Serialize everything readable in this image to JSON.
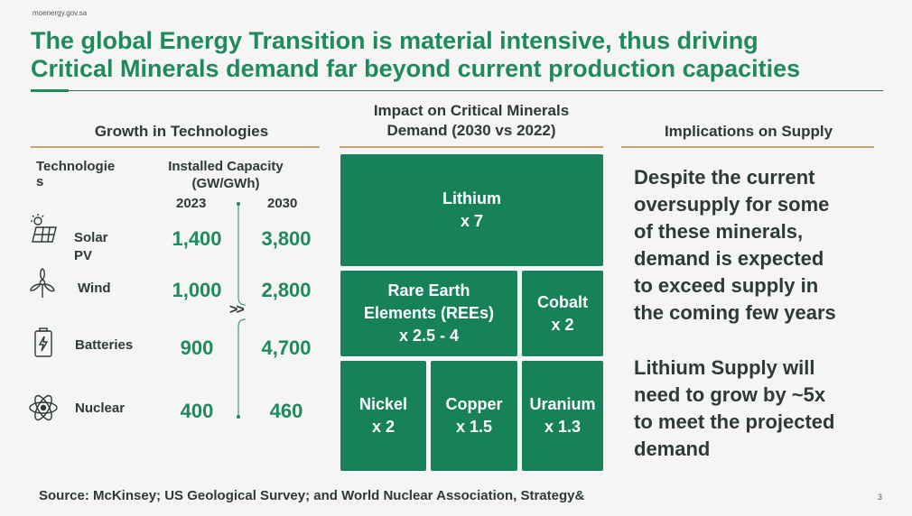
{
  "site": "moenergy.gov.sa",
  "title_line1": "The global Energy Transition is material intensive, thus driving",
  "title_line2": "Critical Minerals demand far beyond current production capacities",
  "growth": {
    "heading": "Growth in Technologies",
    "col_tech_line1": "Technologie",
    "col_tech_line2": "s",
    "col_capacity_line1": "Installed Capacity",
    "col_capacity_line2": "(GW/GWh)",
    "year_a": "2023",
    "year_b": "2030",
    "arrow": ">>",
    "rows": [
      {
        "name_line1": "Solar",
        "name_line2": "PV",
        "icon": "solar-panel-icon",
        "v2023": "1,400",
        "v2030": "3,800"
      },
      {
        "name_line1": "Wind",
        "name_line2": "",
        "icon": "wind-turbine-icon",
        "v2023": "1,000",
        "v2030": "2,800"
      },
      {
        "name_line1": "Batteries",
        "name_line2": "",
        "icon": "battery-icon",
        "v2023": "900",
        "v2030": "4,700"
      },
      {
        "name_line1": "Nuclear",
        "name_line2": "",
        "icon": "atom-icon",
        "v2023": "400",
        "v2030": "460"
      }
    ]
  },
  "impact": {
    "heading_line1": "Impact on Critical Minerals",
    "heading_line2": "Demand (2030 vs 2022)",
    "tiles": [
      {
        "name": "Lithium",
        "mult": "x 7"
      },
      {
        "name": "Rare Earth",
        "name2": "Elements (REEs)",
        "mult": "x 2.5 - 4"
      },
      {
        "name": "Cobalt",
        "mult": "x 2"
      },
      {
        "name": "Nickel",
        "mult": "x 2"
      },
      {
        "name": "Copper",
        "mult": "x 1.5"
      },
      {
        "name": "Uranium",
        "mult": "x 1.3"
      }
    ]
  },
  "implications": {
    "heading": "Implications on Supply",
    "para1": [
      "Despite the current",
      "oversupply for some",
      "of these minerals,",
      "demand is expected",
      "to exceed supply in",
      "the coming few years"
    ],
    "para2": [
      "Lithium Supply will",
      "need to grow by ~5x",
      "to meet the projected",
      "demand"
    ]
  },
  "source": "Source: McKinsey; US Geological Survey; and World Nuclear Association, Strategy&",
  "page": "3",
  "colors": {
    "accent": "#1f8a5c",
    "tile": "#17825a",
    "rule": "#c8a86a",
    "text": "#2d3a36"
  }
}
